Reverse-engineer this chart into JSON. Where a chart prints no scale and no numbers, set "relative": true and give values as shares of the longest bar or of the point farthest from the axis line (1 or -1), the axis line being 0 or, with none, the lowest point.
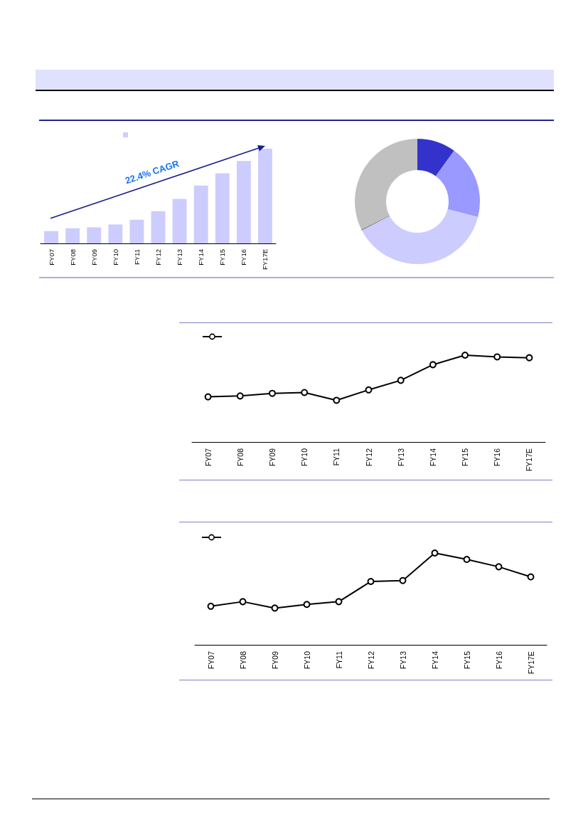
{
  "chart_data": [
    {
      "type": "bar",
      "categories": [
        "FY07",
        "FY08",
        "FY09",
        "FY10",
        "FY11",
        "FY12",
        "FY13",
        "FY14",
        "FY15",
        "FY16",
        "FY17E"
      ],
      "values": [
        0.13,
        0.16,
        0.17,
        0.2,
        0.25,
        0.34,
        0.47,
        0.61,
        0.74,
        0.87,
        1
      ],
      "color": "#ccccff",
      "relative": true,
      "annotations": [
        "22.4% CAGR"
      ]
    },
    {
      "type": "donut",
      "categories": [
        null,
        null,
        null,
        null,
        null
      ],
      "values": [
        10,
        19,
        38.3,
        0.4,
        32.3
      ],
      "colors": [
        "#3333cc",
        "#9999ff",
        "#ccccff",
        "#969696",
        "#c0c0c0"
      ]
    },
    {
      "type": "line",
      "categories": [
        "FY07",
        "FY08",
        "FY09",
        "FY10",
        "FY11",
        "FY12",
        "FY13",
        "FY14",
        "FY15",
        "FY16",
        "FY17E"
      ],
      "values": [
        0.52,
        0.53,
        0.56,
        0.57,
        0.48,
        0.6,
        0.71,
        0.89,
        1,
        0.98,
        0.97
      ],
      "color": "#000000",
      "relative": true,
      "marker": "circle"
    },
    {
      "type": "line",
      "categories": [
        "FY07",
        "FY08",
        "FY09",
        "FY10",
        "FY11",
        "FY12",
        "FY13",
        "FY14",
        "FY15",
        "FY16",
        "FY17E"
      ],
      "values": [
        0.42,
        0.47,
        0.4,
        0.44,
        0.47,
        0.69,
        0.7,
        1,
        0.93,
        0.85,
        0.74
      ],
      "color": "#000000",
      "relative": true,
      "marker": "circle"
    }
  ]
}
